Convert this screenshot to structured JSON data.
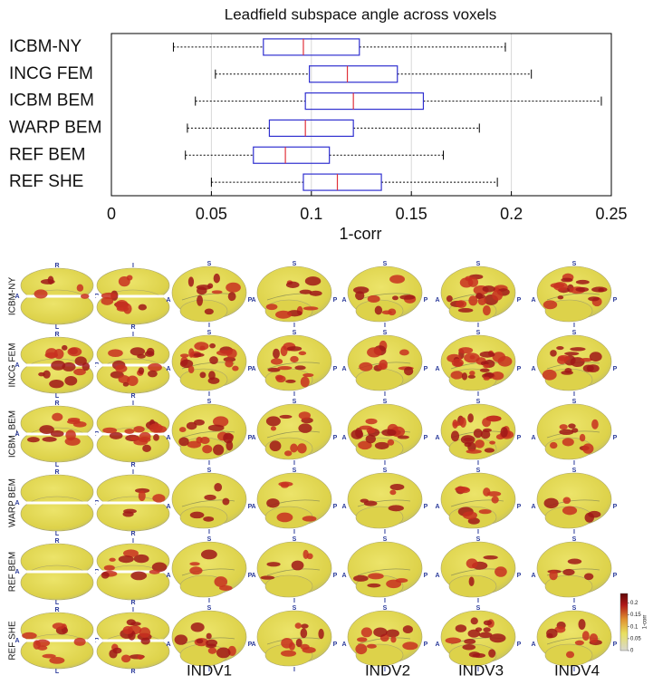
{
  "chart_data": {
    "type": "box",
    "title": "Leadfield subspace angle across voxels",
    "xlabel": "1-corr",
    "categories": [
      "ICBM-NY",
      "INCG FEM",
      "ICBM BEM",
      "WARP BEM",
      "REF BEM",
      "REF SHE"
    ],
    "whisker_low": [
      0.031,
      0.052,
      0.042,
      0.038,
      0.037,
      0.05
    ],
    "q1": [
      0.076,
      0.099,
      0.097,
      0.079,
      0.071,
      0.096
    ],
    "median": [
      0.096,
      0.118,
      0.121,
      0.097,
      0.087,
      0.113
    ],
    "q3": [
      0.124,
      0.143,
      0.156,
      0.121,
      0.109,
      0.135
    ],
    "whisker_high": [
      0.197,
      0.21,
      0.245,
      0.184,
      0.166,
      0.193
    ],
    "box_color": "#3030d0",
    "median_color": "#e0303a",
    "whisker_color": "#000000",
    "xlim": [
      0,
      0.25
    ],
    "xticks": [
      0,
      0.05,
      0.1,
      0.15,
      0.2,
      0.25
    ],
    "grid": true
  },
  "brain_panel": {
    "rows": [
      "ICBM-NY",
      "INCG FEM",
      "ICBM_BEM",
      "WARP BEM",
      "REF BEM",
      "REF SHE"
    ],
    "columns": [
      "INDV1",
      "INDV2",
      "INDV3",
      "INDV4"
    ],
    "orientation_letters": [
      "R",
      "L",
      "I",
      "S",
      "A",
      "P"
    ],
    "colorbar": {
      "label": "1-corr",
      "lim": [
        0,
        0.24
      ],
      "ticks": [
        0,
        0.05,
        0.1,
        0.15,
        0.2
      ]
    }
  }
}
